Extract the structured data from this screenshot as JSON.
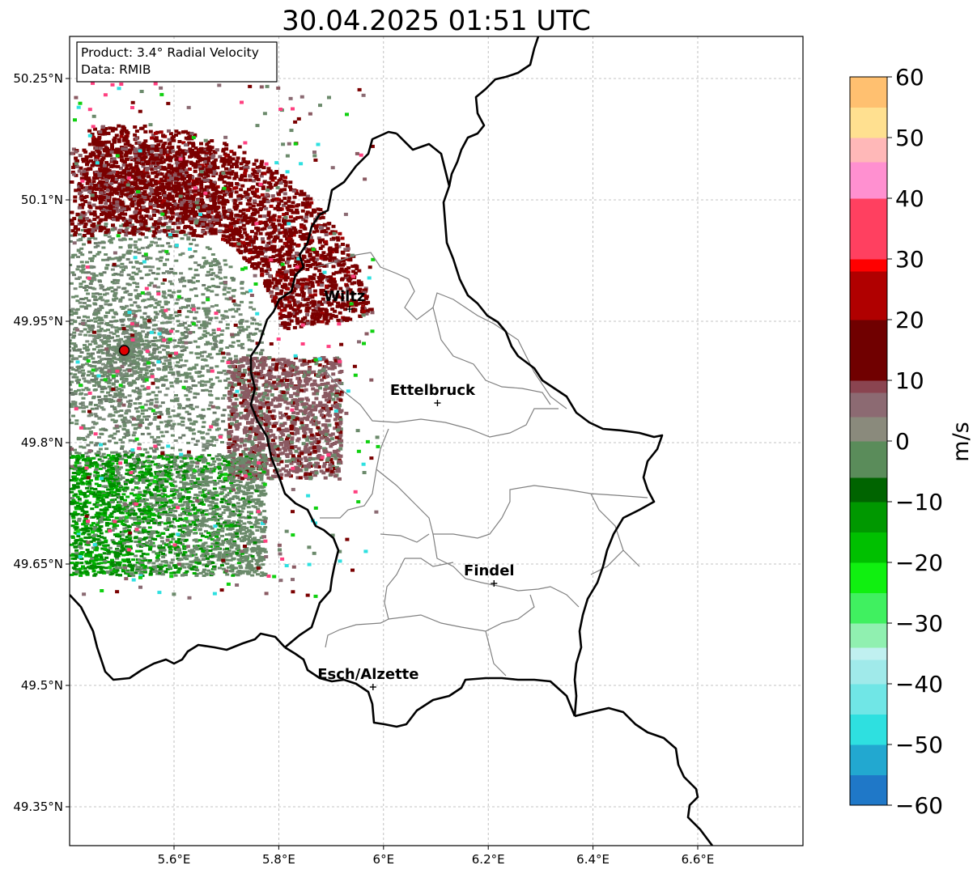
{
  "title": "30.04.2025 01:51 UTC",
  "info_box": {
    "product": "Product: 3.4° Radial Velocity",
    "data": "Data: RMIB"
  },
  "axes": {
    "lon_ticks": [
      {
        "value": 5.6,
        "label": "5.6°E"
      },
      {
        "value": 5.8,
        "label": "5.8°E"
      },
      {
        "value": 6.0,
        "label": "6°E"
      },
      {
        "value": 6.2,
        "label": "6.2°E"
      },
      {
        "value": 6.4,
        "label": "6.4°E"
      },
      {
        "value": 6.6,
        "label": "6.6°E"
      }
    ],
    "lat_ticks": [
      {
        "value": 50.25,
        "label": "50.25°N"
      },
      {
        "value": 50.1,
        "label": "50.1°N"
      },
      {
        "value": 49.95,
        "label": "49.95°N"
      },
      {
        "value": 49.8,
        "label": "49.8°N"
      },
      {
        "value": 49.65,
        "label": "49.65°N"
      },
      {
        "value": 49.5,
        "label": "49.5°N"
      },
      {
        "value": 49.35,
        "label": "49.35°N"
      }
    ],
    "lon_range": [
      5.4,
      6.8
    ],
    "lat_range": [
      49.3,
      50.3
    ],
    "grid": true
  },
  "places": [
    {
      "name": "Wiltz",
      "lon": 5.935,
      "lat": 49.965
    },
    {
      "name": "Ettelbruck",
      "lon": 6.103,
      "lat": 49.849
    },
    {
      "name": "Findel",
      "lon": 6.211,
      "lat": 49.626
    },
    {
      "name": "Esch/Alzette",
      "lon": 5.98,
      "lat": 49.498
    }
  ],
  "radar_site": {
    "lon": 5.505,
    "lat": 49.914,
    "color": "#e00000"
  },
  "colorbar": {
    "label": "m/s",
    "range": [
      -60,
      60
    ],
    "ticks": [
      60,
      50,
      40,
      30,
      20,
      10,
      0,
      -10,
      -20,
      -30,
      -40,
      -50,
      -60
    ],
    "tick_labels": [
      "60",
      "50",
      "40",
      "30",
      "20",
      "10",
      "0",
      "−10",
      "−20",
      "−30",
      "−40",
      "−50",
      "−60"
    ],
    "stops": [
      {
        "v": -60,
        "color": "#1f78c8"
      },
      {
        "v": -55,
        "color": "#22a8d0"
      },
      {
        "v": -50,
        "color": "#2ee0e0"
      },
      {
        "v": -45,
        "color": "#70e6e6"
      },
      {
        "v": -40,
        "color": "#a0eaea"
      },
      {
        "v": -36,
        "color": "#c0f0f0"
      },
      {
        "v": -34,
        "color": "#90f0b0"
      },
      {
        "v": -30,
        "color": "#40f060"
      },
      {
        "v": -25,
        "color": "#10f010"
      },
      {
        "v": -20,
        "color": "#00c000"
      },
      {
        "v": -15,
        "color": "#009800"
      },
      {
        "v": -10,
        "color": "#006400"
      },
      {
        "v": -6,
        "color": "#5a8c5a"
      },
      {
        "v": 0,
        "color": "#8a8a7c"
      },
      {
        "v": 4,
        "color": "#8c6a72"
      },
      {
        "v": 8,
        "color": "#8a4450"
      },
      {
        "v": 10,
        "color": "#700000"
      },
      {
        "v": 20,
        "color": "#b00000"
      },
      {
        "v": 28,
        "color": "#ff0000"
      },
      {
        "v": 30,
        "color": "#ff4060"
      },
      {
        "v": 40,
        "color": "#ff90d0"
      },
      {
        "v": 46,
        "color": "#ffb8b8"
      },
      {
        "v": 50,
        "color": "#ffe090"
      },
      {
        "v": 55,
        "color": "#ffc070"
      },
      {
        "v": 60,
        "color": "#ff9a50"
      }
    ]
  },
  "colors": {
    "border": "#000000",
    "canton": "#808080",
    "grid": "#b0b0b0",
    "approach_strong": "#7a0000",
    "approach_mid": "#8a5a62",
    "zero": "#6b8a6b",
    "recede": "#008a00"
  }
}
